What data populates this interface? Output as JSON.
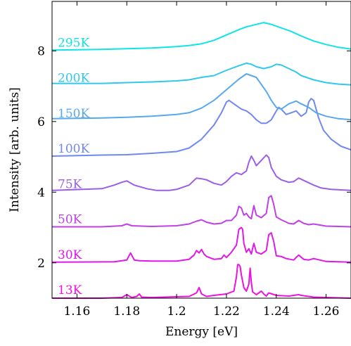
{
  "chart_data": {
    "type": "line",
    "title": "",
    "xlabel": "Energy [eV]",
    "ylabel": "Intensity [arb. units]",
    "xlim": [
      1.15,
      1.27
    ],
    "ylim": [
      1.0,
      9.4
    ],
    "xticks": [
      1.16,
      1.18,
      1.2,
      1.22,
      1.24,
      1.26
    ],
    "xtick_labels": [
      "1.16",
      "1.18",
      "1.2",
      "1.22",
      "1.24",
      "1.26"
    ],
    "yticks": [
      2,
      4,
      6,
      8
    ],
    "ytick_labels": [
      "2",
      "4",
      "6",
      "8"
    ],
    "grid": false,
    "legend": "none",
    "label_placement": "inline-left-of-each-trace",
    "series": [
      {
        "name": "13K",
        "color": "#f010e0",
        "baseline": 1.0,
        "x": [
          1.15,
          1.17,
          1.178,
          1.18,
          1.182,
          1.184,
          1.185,
          1.186,
          1.19,
          1.205,
          1.208,
          1.209,
          1.21,
          1.212,
          1.215,
          1.22,
          1.223,
          1.224,
          1.2245,
          1.225,
          1.2255,
          1.226,
          1.227,
          1.228,
          1.229,
          1.2295,
          1.23,
          1.2305,
          1.232,
          1.234,
          1.235,
          1.236,
          1.237,
          1.24,
          1.245,
          1.249,
          1.25,
          1.252,
          1.255,
          1.27
        ],
        "y": [
          1.0,
          1.0,
          1.02,
          1.1,
          1.02,
          1.05,
          1.12,
          1.03,
          1.02,
          1.05,
          1.15,
          1.3,
          1.12,
          1.05,
          1.08,
          1.12,
          1.2,
          1.6,
          1.95,
          1.95,
          1.9,
          1.65,
          1.3,
          1.2,
          1.4,
          1.85,
          1.45,
          1.18,
          1.1,
          1.2,
          1.12,
          1.06,
          1.15,
          1.08,
          1.06,
          1.1,
          1.08,
          1.06,
          1.03,
          1.0
        ],
        "label": "13K"
      },
      {
        "name": "30K",
        "color": "#e018e8",
        "baseline": 2.0,
        "x": [
          1.15,
          1.175,
          1.18,
          1.1815,
          1.183,
          1.185,
          1.19,
          1.2,
          1.205,
          1.207,
          1.208,
          1.209,
          1.21,
          1.211,
          1.212,
          1.215,
          1.218,
          1.219,
          1.22,
          1.222,
          1.224,
          1.225,
          1.226,
          1.2265,
          1.227,
          1.228,
          1.229,
          1.23,
          1.231,
          1.232,
          1.234,
          1.236,
          1.237,
          1.238,
          1.239,
          1.24,
          1.242,
          1.244,
          1.247,
          1.249,
          1.251,
          1.253,
          1.255,
          1.26,
          1.27
        ],
        "y": [
          2.02,
          2.03,
          2.08,
          2.28,
          2.08,
          2.06,
          2.05,
          2.05,
          2.1,
          2.22,
          2.35,
          2.28,
          2.38,
          2.25,
          2.18,
          2.1,
          2.12,
          2.22,
          2.15,
          2.3,
          2.5,
          2.95,
          3.0,
          2.95,
          2.55,
          2.3,
          2.4,
          2.25,
          2.55,
          2.3,
          2.25,
          2.35,
          2.8,
          2.85,
          2.6,
          2.2,
          2.18,
          2.12,
          2.08,
          2.22,
          2.1,
          2.08,
          2.12,
          2.04,
          2.02
        ],
        "label": "30K"
      },
      {
        "name": "50K",
        "color": "#c040e8",
        "baseline": 3.0,
        "x": [
          1.15,
          1.17,
          1.178,
          1.18,
          1.182,
          1.19,
          1.2,
          1.205,
          1.208,
          1.21,
          1.212,
          1.215,
          1.218,
          1.22,
          1.222,
          1.224,
          1.225,
          1.226,
          1.227,
          1.228,
          1.229,
          1.23,
          1.231,
          1.232,
          1.234,
          1.236,
          1.237,
          1.238,
          1.239,
          1.24,
          1.242,
          1.245,
          1.247,
          1.249,
          1.251,
          1.253,
          1.255,
          1.26,
          1.27
        ],
        "y": [
          3.02,
          3.02,
          3.05,
          3.1,
          3.05,
          3.03,
          3.05,
          3.1,
          3.18,
          3.22,
          3.15,
          3.1,
          3.12,
          3.2,
          3.2,
          3.35,
          3.6,
          3.55,
          3.35,
          3.4,
          3.3,
          3.25,
          3.62,
          3.35,
          3.28,
          3.4,
          3.85,
          3.9,
          3.65,
          3.3,
          3.22,
          3.12,
          3.1,
          3.2,
          3.12,
          3.08,
          3.1,
          3.04,
          3.02
        ],
        "label": "50K"
      },
      {
        "name": "75K",
        "color": "#9a5ee8",
        "baseline": 4.0,
        "x": [
          1.15,
          1.17,
          1.175,
          1.178,
          1.18,
          1.183,
          1.188,
          1.192,
          1.197,
          1.2,
          1.205,
          1.208,
          1.21,
          1.212,
          1.215,
          1.218,
          1.22,
          1.222,
          1.224,
          1.226,
          1.228,
          1.229,
          1.23,
          1.231,
          1.232,
          1.234,
          1.236,
          1.237,
          1.238,
          1.24,
          1.242,
          1.245,
          1.247,
          1.249,
          1.252,
          1.255,
          1.258,
          1.262,
          1.27
        ],
        "y": [
          4.05,
          4.1,
          4.2,
          4.28,
          4.32,
          4.2,
          4.1,
          4.05,
          4.05,
          4.08,
          4.2,
          4.4,
          4.38,
          4.35,
          4.25,
          4.2,
          4.3,
          4.45,
          4.55,
          4.5,
          4.6,
          4.85,
          5.02,
          4.9,
          4.75,
          4.9,
          5.05,
          4.98,
          4.7,
          4.45,
          4.35,
          4.28,
          4.3,
          4.4,
          4.3,
          4.2,
          4.12,
          4.08,
          4.05
        ],
        "label": "75K"
      },
      {
        "name": "100K",
        "color": "#7088f0",
        "baseline": 5.0,
        "x": [
          1.15,
          1.17,
          1.18,
          1.19,
          1.2,
          1.205,
          1.21,
          1.215,
          1.218,
          1.22,
          1.221,
          1.222,
          1.224,
          1.226,
          1.228,
          1.23,
          1.232,
          1.234,
          1.236,
          1.238,
          1.24,
          1.241,
          1.242,
          1.244,
          1.246,
          1.248,
          1.25,
          1.252,
          1.253,
          1.254,
          1.255,
          1.257,
          1.259,
          1.262,
          1.266,
          1.27
        ],
        "y": [
          5.02,
          5.05,
          5.06,
          5.1,
          5.15,
          5.25,
          5.5,
          5.9,
          6.25,
          6.55,
          6.6,
          6.55,
          6.45,
          6.35,
          6.3,
          6.2,
          6.05,
          5.95,
          5.95,
          6.05,
          6.3,
          6.4,
          6.35,
          6.2,
          6.25,
          6.3,
          6.15,
          6.25,
          6.55,
          6.65,
          6.6,
          6.1,
          5.75,
          5.5,
          5.3,
          5.2
        ],
        "label": "100K"
      },
      {
        "name": "150K",
        "color": "#58a8ee",
        "baseline": 6.0,
        "x": [
          1.15,
          1.17,
          1.18,
          1.19,
          1.2,
          1.205,
          1.21,
          1.215,
          1.22,
          1.225,
          1.228,
          1.23,
          1.232,
          1.234,
          1.236,
          1.238,
          1.24,
          1.242,
          1.245,
          1.248,
          1.25,
          1.253,
          1.256,
          1.26,
          1.265,
          1.27
        ],
        "y": [
          6.08,
          6.1,
          6.12,
          6.15,
          6.2,
          6.25,
          6.38,
          6.6,
          6.9,
          7.2,
          7.35,
          7.3,
          7.25,
          7.05,
          6.85,
          6.6,
          6.4,
          6.35,
          6.5,
          6.58,
          6.5,
          6.4,
          6.25,
          6.15,
          6.08,
          6.05
        ],
        "label": "150K"
      },
      {
        "name": "200K",
        "color": "#30c8ec",
        "baseline": 7.0,
        "x": [
          1.15,
          1.17,
          1.18,
          1.19,
          1.2,
          1.205,
          1.21,
          1.215,
          1.22,
          1.225,
          1.228,
          1.23,
          1.232,
          1.235,
          1.238,
          1.24,
          1.242,
          1.245,
          1.248,
          1.25,
          1.255,
          1.26,
          1.265,
          1.27
        ],
        "y": [
          7.08,
          7.08,
          7.1,
          7.12,
          7.15,
          7.18,
          7.25,
          7.3,
          7.45,
          7.58,
          7.65,
          7.62,
          7.55,
          7.5,
          7.55,
          7.62,
          7.6,
          7.5,
          7.4,
          7.3,
          7.18,
          7.1,
          7.06,
          7.04
        ],
        "label": "200K"
      },
      {
        "name": "295K",
        "color": "#10e4e4",
        "baseline": 8.0,
        "x": [
          1.15,
          1.17,
          1.18,
          1.19,
          1.2,
          1.205,
          1.21,
          1.215,
          1.22,
          1.225,
          1.228,
          1.232,
          1.235,
          1.238,
          1.242,
          1.246,
          1.25,
          1.255,
          1.26,
          1.265,
          1.27
        ],
        "y": [
          8.02,
          8.04,
          8.06,
          8.08,
          8.12,
          8.15,
          8.2,
          8.3,
          8.45,
          8.6,
          8.68,
          8.75,
          8.8,
          8.75,
          8.65,
          8.55,
          8.42,
          8.28,
          8.18,
          8.1,
          8.05
        ],
        "label": "295K"
      }
    ]
  }
}
